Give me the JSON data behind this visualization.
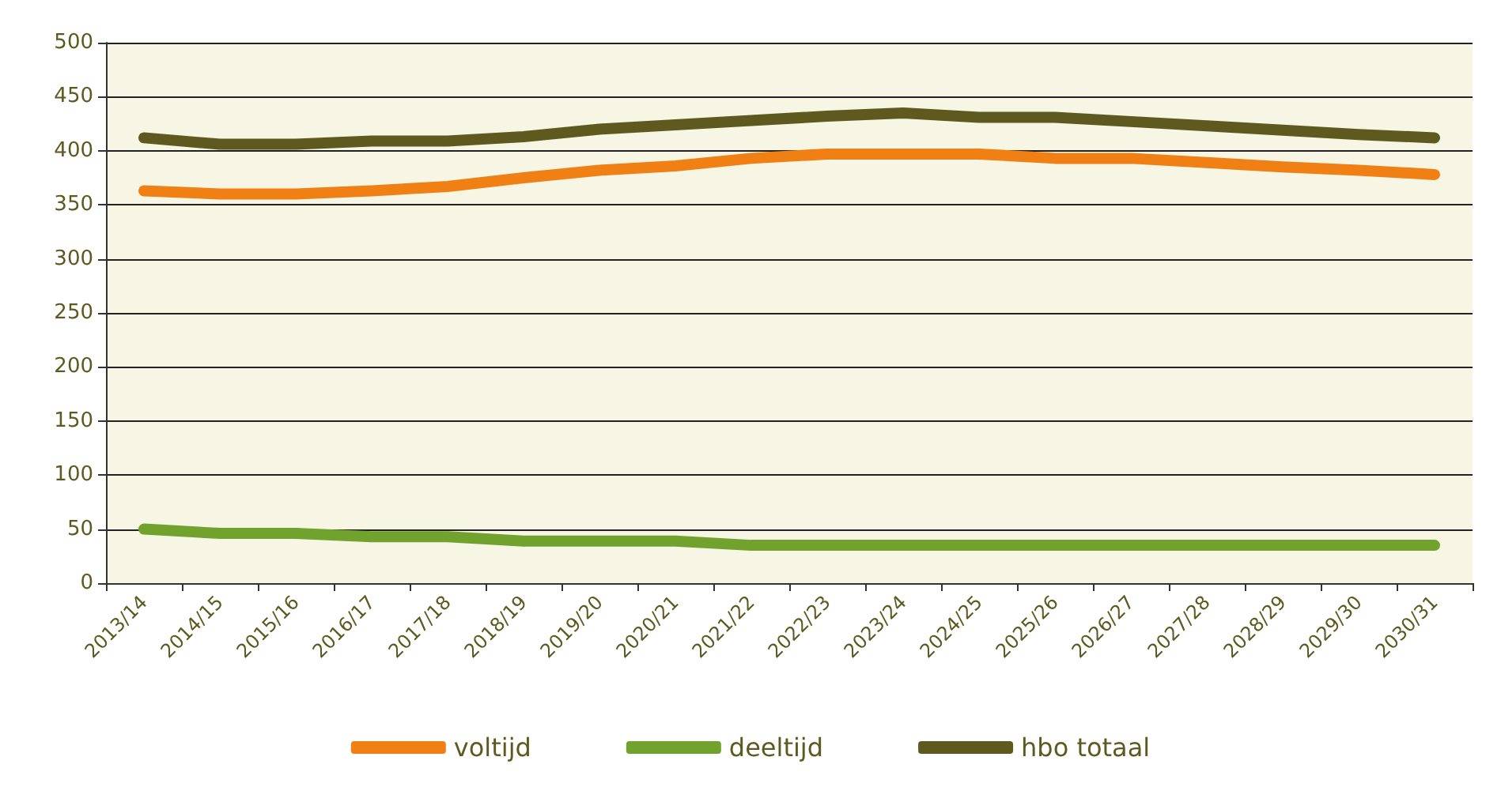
{
  "chart_data": {
    "type": "line",
    "categories": [
      "2013/14",
      "2014/15",
      "2015/16",
      "2016/17",
      "2017/18",
      "2018/19",
      "2019/20",
      "2020/21",
      "2021/22",
      "2022/23",
      "2023/24",
      "2024/25",
      "2025/26",
      "2026/27",
      "2027/28",
      "2028/29",
      "2029/30",
      "2030/31"
    ],
    "series": [
      {
        "name": "voltijd",
        "color": "#f07f14",
        "values": [
          363,
          360,
          360,
          363,
          367,
          375,
          382,
          386,
          393,
          397,
          397,
          397,
          393,
          393,
          389,
          385,
          382,
          378
        ]
      },
      {
        "name": "deeltijd",
        "color": "#72a22e",
        "values": [
          50,
          46,
          46,
          43,
          43,
          39,
          39,
          39,
          35,
          35,
          35,
          35,
          35,
          35,
          35,
          35,
          35,
          35
        ]
      },
      {
        "name": "hbo totaal",
        "color": "#5e5a1f",
        "values": [
          412,
          406,
          406,
          409,
          409,
          413,
          420,
          424,
          428,
          432,
          435,
          431,
          431,
          427,
          423,
          419,
          415,
          412
        ]
      }
    ],
    "ylim": [
      0,
      500
    ],
    "yticks": [
      0,
      50,
      100,
      150,
      200,
      250,
      300,
      350,
      400,
      450,
      500
    ],
    "grid": "y",
    "legend": "bottom",
    "line_style": "solid"
  }
}
